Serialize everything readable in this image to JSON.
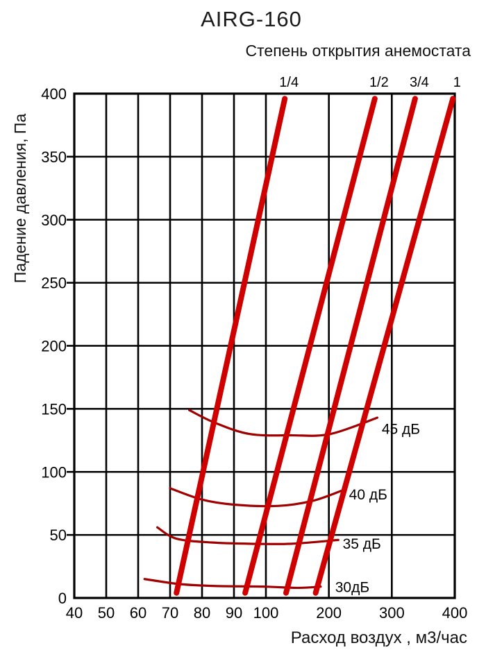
{
  "page": {
    "title": "AIRG-160"
  },
  "chart_data": {
    "type": "line",
    "title": "AIRG-160",
    "subtitle": "Степень открытия анемостата",
    "xlabel": "Расход воздух , м3/час",
    "ylabel": "Падение давления, Па",
    "x_scale": "piecewise-linear (40–100 expanded, 100–400 compressed)",
    "xlim": [
      40,
      400
    ],
    "ylim": [
      0,
      400
    ],
    "x_ticks": [
      40,
      50,
      60,
      70,
      80,
      90,
      100,
      200,
      300,
      400
    ],
    "y_ticks": [
      0,
      50,
      100,
      150,
      200,
      250,
      300,
      350,
      400
    ],
    "grid": true,
    "legend_position": "labels-inline",
    "opening_lines": [
      {
        "label": "1/4",
        "points": [
          [
            72,
            4
          ],
          [
            130,
            396
          ]
        ]
      },
      {
        "label": "1/2",
        "points": [
          [
            93.5,
            4
          ],
          [
            273,
            396
          ]
        ]
      },
      {
        "label": "3/4",
        "points": [
          [
            132,
            4
          ],
          [
            337,
            396
          ]
        ]
      },
      {
        "label": "1",
        "points": [
          [
            179,
            4
          ],
          [
            397,
            396
          ]
        ]
      }
    ],
    "noise_curves": [
      {
        "label": "45 дБ",
        "label_at": [
          284,
          134
        ],
        "points": [
          [
            76,
            149
          ],
          [
            84,
            139
          ],
          [
            95,
            130
          ],
          [
            141,
            129
          ],
          [
            202,
            130
          ],
          [
            277,
            143
          ]
        ]
      },
      {
        "label": "40 дБ",
        "label_at": [
          232,
          82
        ],
        "points": [
          [
            70,
            87
          ],
          [
            80,
            78
          ],
          [
            90,
            74
          ],
          [
            119,
            73
          ],
          [
            174,
            77
          ],
          [
            220,
            85
          ]
        ]
      },
      {
        "label": "35 дБ",
        "label_at": [
          222,
          43
        ],
        "points": [
          [
            66,
            56
          ],
          [
            72,
            47
          ],
          [
            83,
            44
          ],
          [
            95,
            43
          ],
          [
            141,
            43
          ],
          [
            215,
            46
          ]
        ]
      },
      {
        "label": "30дБ",
        "label_at": [
          210,
          8.5
        ],
        "points": [
          [
            62,
            15
          ],
          [
            73,
            11
          ],
          [
            84,
            9.5
          ],
          [
            99,
            9
          ],
          [
            152,
            8
          ],
          [
            187,
            9
          ]
        ]
      }
    ],
    "colors": {
      "opening_line": "#cf0000",
      "noise_curve": "#a00000",
      "grid": "#000000",
      "text": "#000000",
      "background": "#ffffff"
    }
  }
}
